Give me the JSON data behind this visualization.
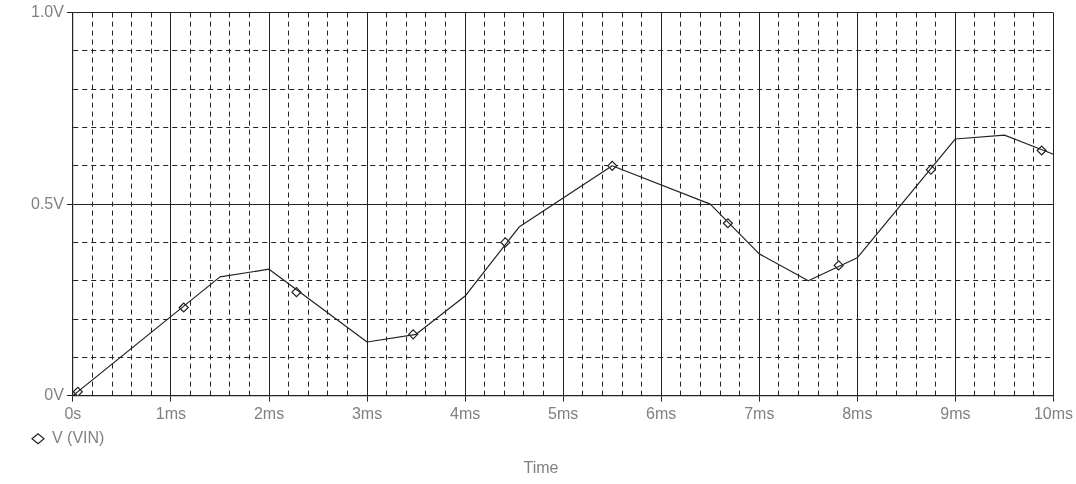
{
  "chart_data": {
    "type": "line",
    "xlabel": "Time",
    "legend": "bottom left",
    "grid": true,
    "xlim": [
      0,
      10
    ],
    "ylim": [
      0,
      1
    ],
    "xticks": [
      {
        "value": 0,
        "label": "0s"
      },
      {
        "value": 0.2,
        "label": null
      },
      {
        "value": 0.4,
        "label": null
      },
      {
        "value": 0.6,
        "label": null
      },
      {
        "value": 0.8,
        "label": null
      },
      {
        "value": 1,
        "label": "1ms"
      },
      {
        "value": 1.2,
        "label": null
      },
      {
        "value": 1.4,
        "label": null
      },
      {
        "value": 1.6,
        "label": null
      },
      {
        "value": 1.8,
        "label": null
      },
      {
        "value": 2,
        "label": "2ms"
      },
      {
        "value": 2.2,
        "label": null
      },
      {
        "value": 2.4,
        "label": null
      },
      {
        "value": 2.6,
        "label": null
      },
      {
        "value": 2.8,
        "label": null
      },
      {
        "value": 3,
        "label": "3ms"
      },
      {
        "value": 3.2,
        "label": null
      },
      {
        "value": 3.4,
        "label": null
      },
      {
        "value": 3.6,
        "label": null
      },
      {
        "value": 3.8,
        "label": null
      },
      {
        "value": 4,
        "label": "4ms"
      },
      {
        "value": 4.2,
        "label": null
      },
      {
        "value": 4.4,
        "label": null
      },
      {
        "value": 4.6,
        "label": null
      },
      {
        "value": 4.8,
        "label": null
      },
      {
        "value": 5,
        "label": "5ms"
      },
      {
        "value": 5.2,
        "label": null
      },
      {
        "value": 5.4,
        "label": null
      },
      {
        "value": 5.6,
        "label": null
      },
      {
        "value": 5.8,
        "label": null
      },
      {
        "value": 6,
        "label": "6ms"
      },
      {
        "value": 6.2,
        "label": null
      },
      {
        "value": 6.4,
        "label": null
      },
      {
        "value": 6.6,
        "label": null
      },
      {
        "value": 6.8,
        "label": null
      },
      {
        "value": 7,
        "label": "7ms"
      },
      {
        "value": 7.2,
        "label": null
      },
      {
        "value": 7.4,
        "label": null
      },
      {
        "value": 7.6,
        "label": null
      },
      {
        "value": 7.8,
        "label": null
      },
      {
        "value": 8,
        "label": "8ms"
      },
      {
        "value": 8.2,
        "label": null
      },
      {
        "value": 8.4,
        "label": null
      },
      {
        "value": 8.6,
        "label": null
      },
      {
        "value": 8.8,
        "label": null
      },
      {
        "value": 9,
        "label": "9ms"
      },
      {
        "value": 9.2,
        "label": null
      },
      {
        "value": 9.4,
        "label": null
      },
      {
        "value": 9.6,
        "label": null
      },
      {
        "value": 9.8,
        "label": null
      },
      {
        "value": 10,
        "label": "10ms"
      }
    ],
    "yticks": [
      {
        "value": 0,
        "label": "0V"
      },
      {
        "value": 0.1,
        "label": null
      },
      {
        "value": 0.2,
        "label": null
      },
      {
        "value": 0.3,
        "label": null
      },
      {
        "value": 0.4,
        "label": null
      },
      {
        "value": 0.5,
        "label": "0.5V"
      },
      {
        "value": 0.6,
        "label": null
      },
      {
        "value": 0.7,
        "label": null
      },
      {
        "value": 0.8,
        "label": null
      },
      {
        "value": 0.9,
        "label": null
      },
      {
        "value": 1,
        "label": "1.0V"
      }
    ],
    "series": [
      {
        "color": "#222222",
        "marker": "none",
        "x": [
          0,
          1.5,
          2,
          3,
          3.5,
          4,
          4.55,
          5.5,
          6.5,
          7,
          7.5,
          8,
          9,
          9.5,
          10
        ],
        "values": [
          0,
          0.31,
          0.33,
          0.14,
          0.16,
          0.26,
          0.44,
          0.6,
          0.5,
          0.37,
          0.3,
          0.36,
          0.67,
          0.68,
          0.63
        ]
      },
      {
        "type": "scatter",
        "name": "V (VIN)",
        "color": "#222222",
        "marker": "diamond",
        "x": [
          0.05,
          1.13,
          2.28,
          3.47,
          4.41,
          5.5,
          6.68,
          7.81,
          8.75,
          9.88
        ],
        "values": [
          0.01,
          0.23,
          0.27,
          0.16,
          0.4,
          0.6,
          0.45,
          0.34,
          0.59,
          0.64
        ]
      }
    ]
  }
}
